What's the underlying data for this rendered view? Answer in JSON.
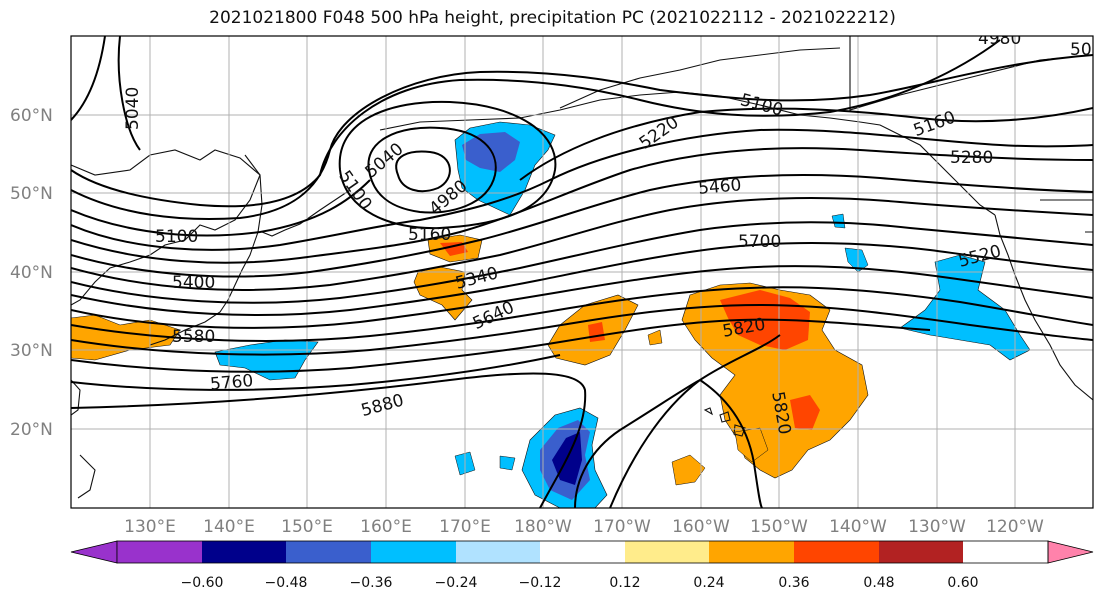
{
  "title": "2021021800 F048 500 hPa height, precipitation PC (2021022112 - 2021022212)",
  "map": {
    "lat_labels": [
      "60°N",
      "50°N",
      "40°N",
      "30°N",
      "20°N"
    ],
    "lon_labels": [
      "130°E",
      "140°E",
      "150°E",
      "160°E",
      "170°E",
      "180°W",
      "170°W",
      "160°W",
      "150°W",
      "140°W",
      "130°W",
      "120°W"
    ],
    "contour_labels": [
      "5040",
      "5040",
      "4980",
      "5100",
      "5100",
      "5220",
      "5100",
      "5160",
      "5460",
      "5280",
      "5160",
      "5340",
      "5700",
      "5520",
      "5400",
      "5640",
      "5820",
      "5580",
      "5760",
      "5880",
      "5820",
      "4980",
      "50"
    ]
  },
  "colorbar": {
    "ticks": [
      "−0.60",
      "−0.48",
      "−0.36",
      "−0.24",
      "−0.12",
      "0.12",
      "0.24",
      "0.36",
      "0.48",
      "0.60"
    ],
    "colors": [
      "#9932cc",
      "#00008b",
      "#3a5fcd",
      "#00bfff",
      "#b0e2ff",
      "#ffffff",
      "#ffec8b",
      "#ffa500",
      "#ff4500",
      "#b22222",
      "#ff82ab"
    ]
  }
}
